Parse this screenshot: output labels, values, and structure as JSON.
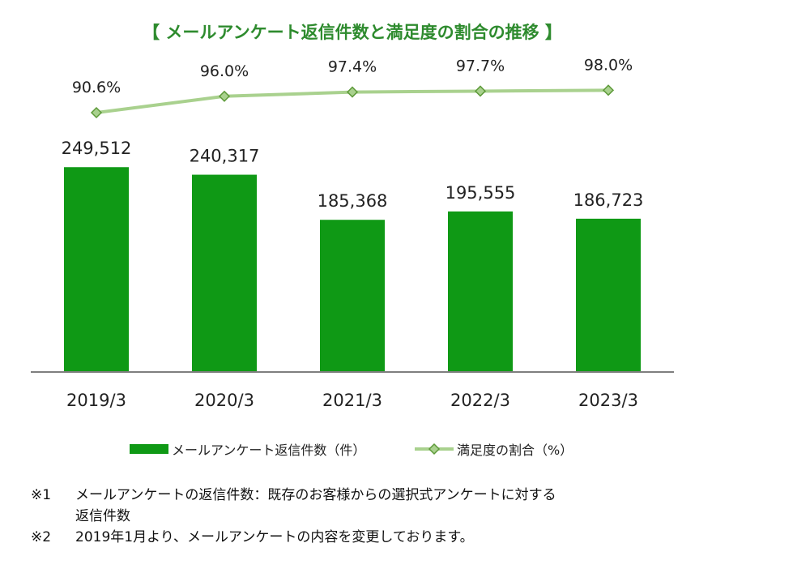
{
  "chart_data": {
    "type": "bar",
    "title": "【 メールアンケート返信件数と満足度の割合の推移 】",
    "categories": [
      "2019/3",
      "2020/3",
      "2021/3",
      "2022/3",
      "2023/3"
    ],
    "series": [
      {
        "name": "メールアンケート返信件数（件）",
        "type": "bar",
        "values": [
          249512,
          240317,
          185368,
          195555,
          186723
        ],
        "labels": [
          "249,512",
          "240,317",
          "185,368",
          "195,555",
          "186,723"
        ],
        "color": "#0f9915"
      },
      {
        "name": "満足度の割合（%）",
        "type": "line",
        "values": [
          90.6,
          96.0,
          97.4,
          97.7,
          98.0
        ],
        "labels": [
          "90.6%",
          "96.0%",
          "97.4%",
          "97.7%",
          "98.0%"
        ],
        "color": "#a9d18e",
        "marker_color": "#5e9a3a"
      }
    ],
    "legend_position": "bottom",
    "title_color": "#2e8b2e",
    "axis_color": "#7f7f7f"
  },
  "notes": {
    "note1_mark": "※1",
    "note1_text": "メールアンケートの返信件数：既存のお客様からの選択式アンケートに対する",
    "note1_cont": "返信件数",
    "note2_mark": "※2",
    "note2_text": "2019年1月より、メールアンケートの内容を変更しております。"
  }
}
